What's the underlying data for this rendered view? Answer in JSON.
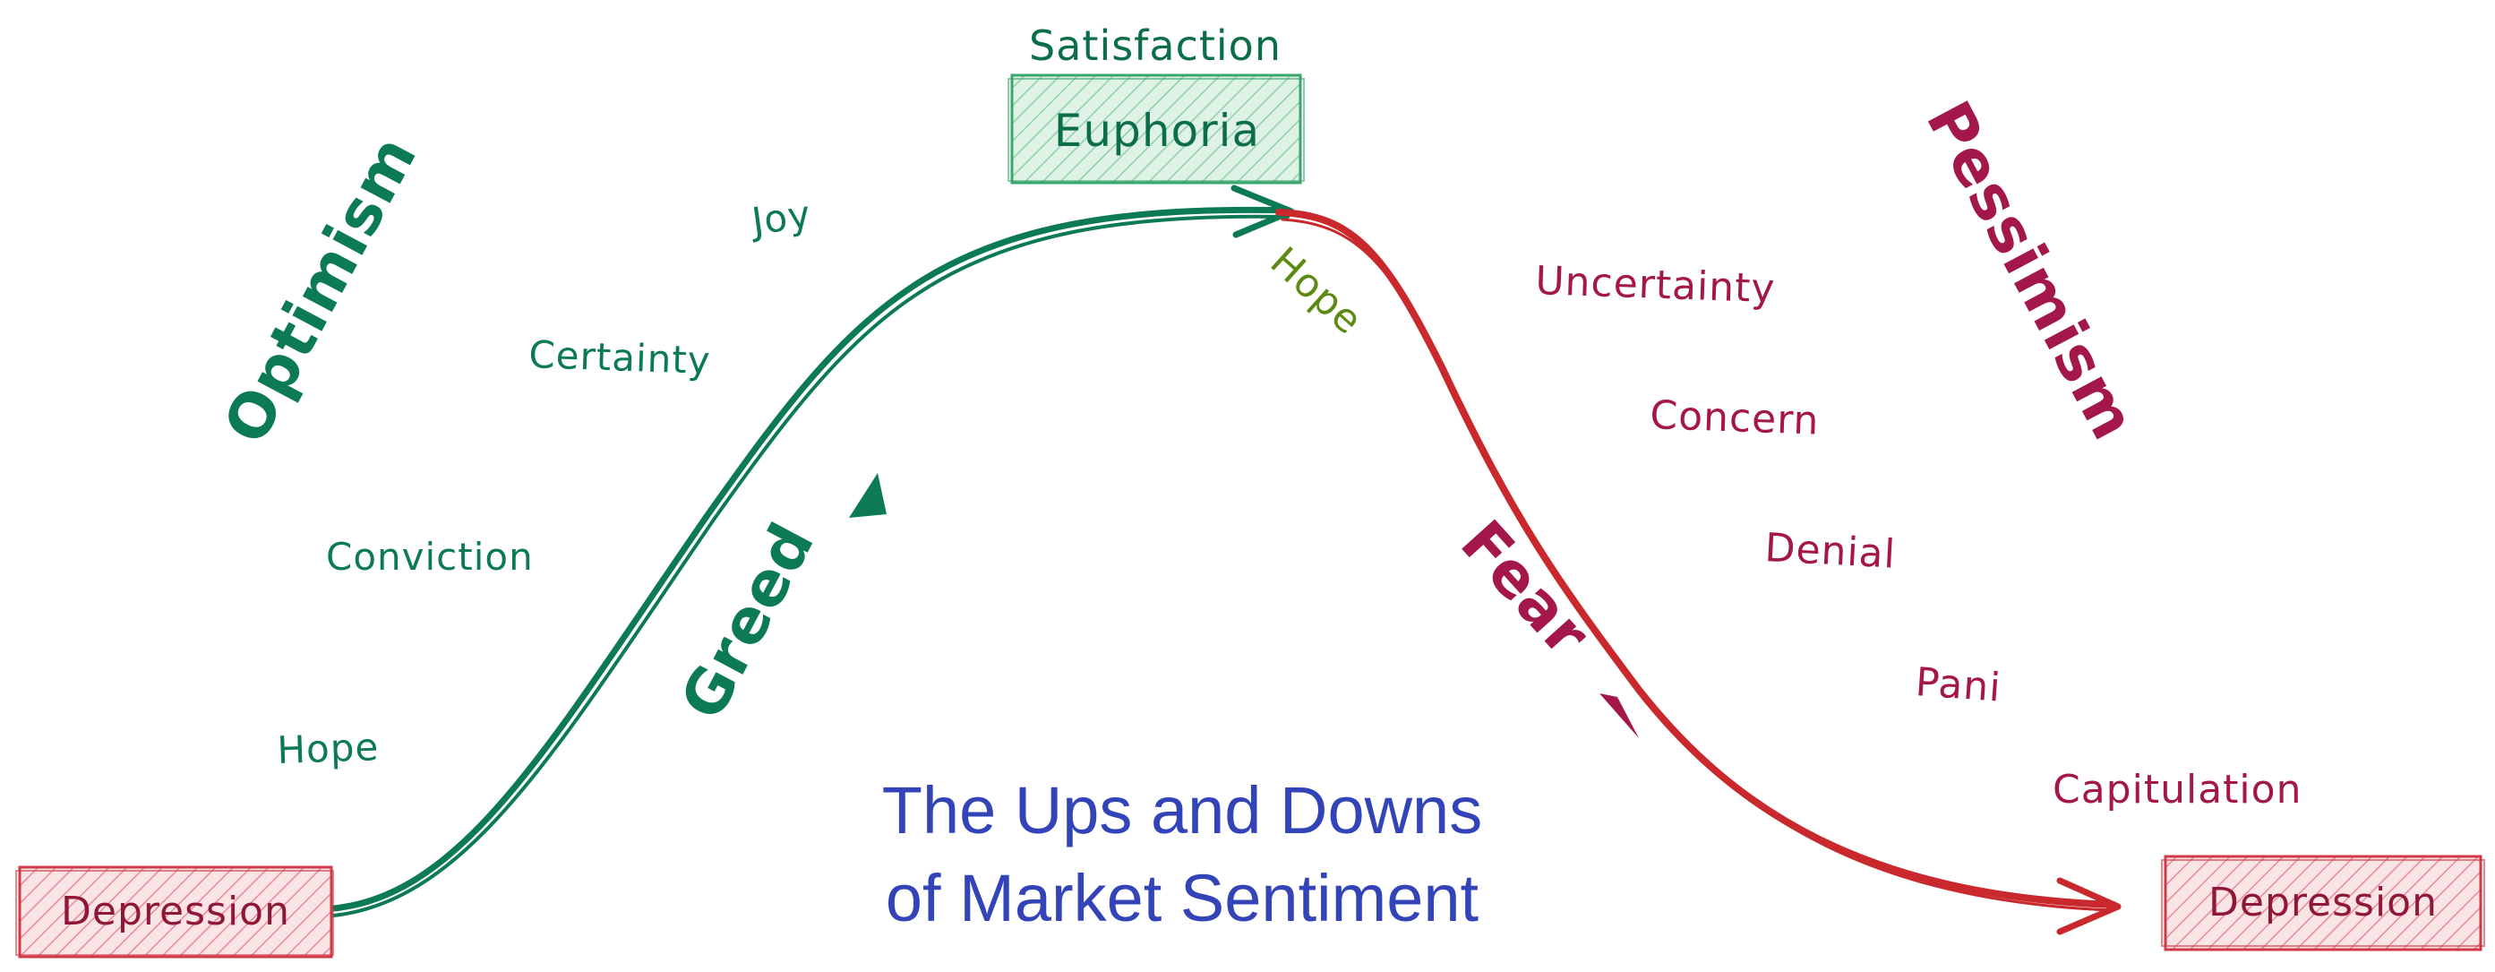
{
  "title": {
    "line1": "The Ups and Downs",
    "line2": "of Market Sentiment"
  },
  "boxes": {
    "start": "Depression",
    "peak": "Euphoria",
    "end": "Depression"
  },
  "peak_caption": "Satisfaction",
  "phases": {
    "optimism": "Optimism",
    "pessimism": "Pessimism"
  },
  "drivers": {
    "greed": "Greed",
    "fear": "Fear"
  },
  "rising_emotions": [
    "Hope",
    "Conviction",
    "Certainty",
    "Joy"
  ],
  "falling_emotions": [
    "Hope",
    "Uncertainty",
    "Concern",
    "Denial",
    "Pani",
    "Capitulation"
  ],
  "colors": {
    "rising": "#0b7a55",
    "falling": "#c9282d",
    "pessimism_text": "#a3174a",
    "depression_box_fill": "#f7c7cc",
    "depression_box_stroke": "#cf3a48",
    "depression_text": "#8f1838",
    "euphoria_box_fill": "#bfe6cf",
    "euphoria_box_stroke": "#3aa66e",
    "euphoria_text": "#0b6e46",
    "hope_after_peak": "#5c8a13",
    "title": "#3343b8"
  }
}
